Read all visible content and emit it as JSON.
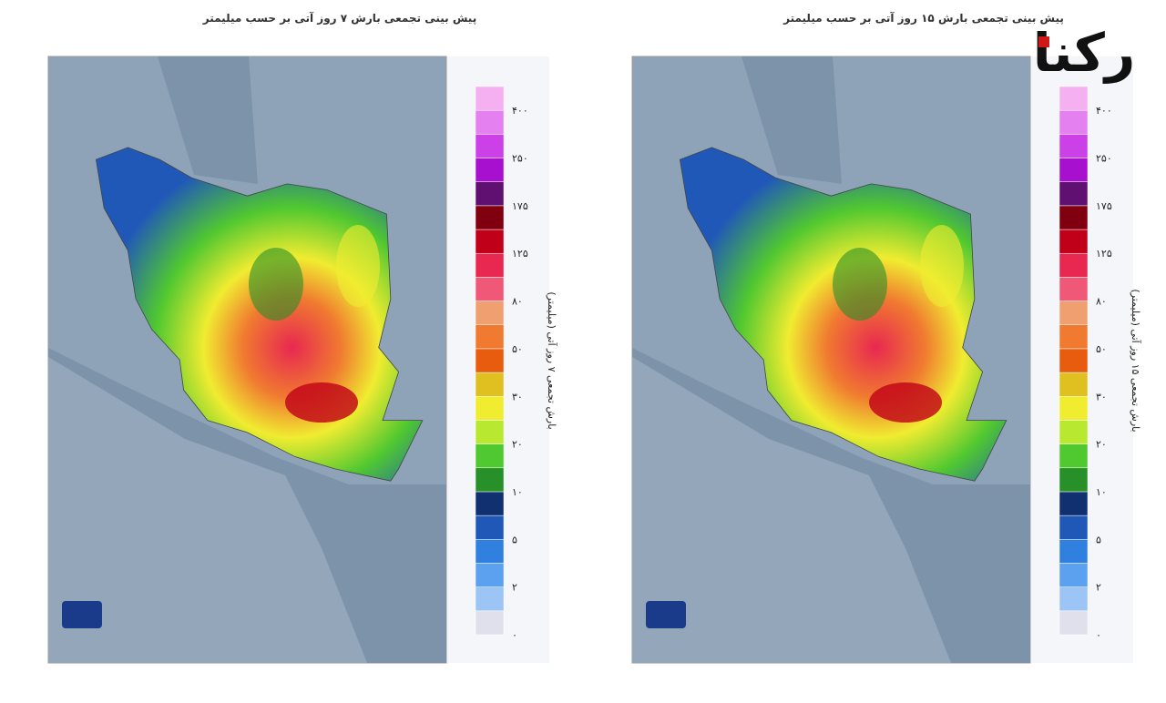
{
  "logo": "رکنا",
  "panels": [
    {
      "title": "پیش بینی تجمعی بارش ۷ روز آتی بر حسب میلیمتر",
      "colorbar_title": "بارش تجمعی ۷ روز آتی (میلیمتر)"
    },
    {
      "title": "پیش بینی تجمعی بارش ۱۵ روز آتی بر حسب میلیمتر",
      "colorbar_title": "بارش تجمعی ۱۵ روز آتی (میلیمتر)"
    }
  ],
  "scale_labels": [
    "۰",
    "۲",
    "۵",
    "۱۰",
    "۲۰",
    "۳۰",
    "۵۰",
    "۸۰",
    "۱۲۵",
    "۱۷۵",
    "۲۵۰",
    "۴۰۰"
  ],
  "scale_colors": [
    "#e0e0ec",
    "#9cc4f4",
    "#5ca0f0",
    "#3080e0",
    "#2058b8",
    "#103070",
    "#289028",
    "#50c830",
    "#b8e830",
    "#f0ec30",
    "#e0c020",
    "#e85c10",
    "#f07a30",
    "#f0a070",
    "#f05878",
    "#e82850",
    "#c00018",
    "#800010",
    "#601070",
    "#a810d0",
    "#cc40e8",
    "#e480f0",
    "#f4b0f0"
  ]
}
